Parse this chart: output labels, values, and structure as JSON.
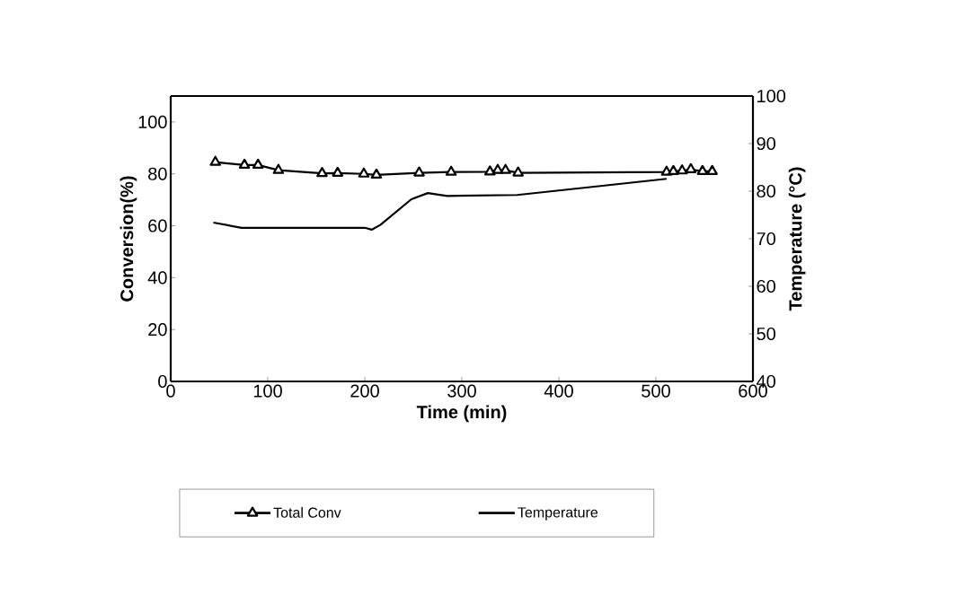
{
  "chart_data": {
    "type": "line",
    "xlabel": "Time (min)",
    "ylabel": "Conversion(%)",
    "y2label": "Temperature (°C)",
    "xlim": [
      0,
      600
    ],
    "xticks": [
      0,
      100,
      200,
      300,
      400,
      500,
      600
    ],
    "ylim": [
      0,
      110
    ],
    "yticks": [
      0,
      20,
      40,
      60,
      80,
      100
    ],
    "y2lim": [
      40,
      100
    ],
    "y2ticks": [
      40,
      50,
      60,
      70,
      80,
      90,
      100
    ],
    "legend": "bottom",
    "grid": false,
    "series": [
      {
        "name": "Total Conv",
        "color": "#000000",
        "marker": "triangle",
        "x": [
          46,
          76,
          90,
          111,
          156,
          172,
          199,
          212,
          256,
          289,
          329,
          337,
          345,
          358,
          511,
          518,
          527,
          536,
          548,
          558
        ],
        "values": [
          84.5,
          83.4,
          83.4,
          81.4,
          80.2,
          80.3,
          80,
          79.6,
          80.4,
          80.7,
          80.8,
          81.4,
          81.4,
          80.4,
          80.7,
          81,
          81.2,
          81.7,
          81,
          81
        ]
      },
      {
        "name": "Temperature",
        "color": "#000000",
        "marker": "none",
        "axis": "y2",
        "x": [
          44,
          73,
          200,
          207,
          216,
          248,
          265,
          285,
          357,
          430,
          511
        ],
        "values": [
          73.4,
          72.3,
          72.3,
          71.9,
          72.9,
          78.3,
          79.6,
          79,
          79.2,
          80.8,
          82.6
        ]
      }
    ]
  }
}
